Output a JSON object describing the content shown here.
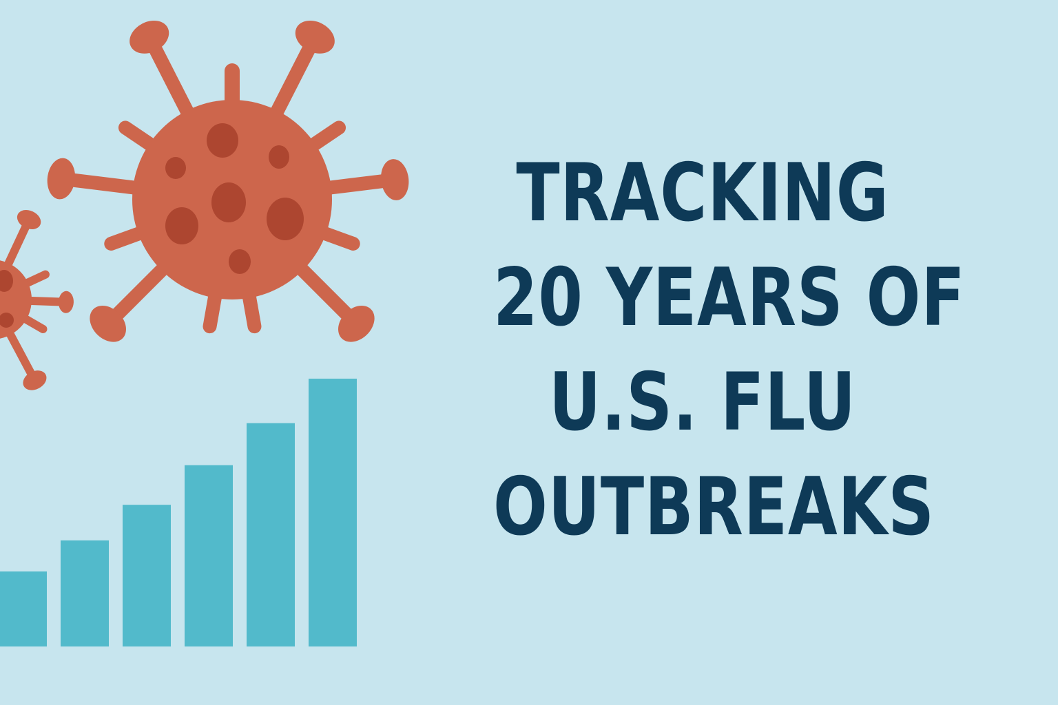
{
  "title_lines": [
    "TRACKING",
    "20 YEARS OF",
    "U.S. FLU",
    "OUTBREAKS"
  ],
  "colors": {
    "background": "#c7e5ee",
    "virus_body": "#cd664c",
    "virus_spots": "#ad4630",
    "bars": "#52bacb",
    "title_text": "#0e3a57"
  },
  "icons": [
    "virus-icon",
    "virus-icon",
    "bar-chart-icon"
  ],
  "bar_chart_relative_heights": [
    0.28,
    0.396,
    0.529,
    0.677,
    0.834,
    1.0
  ]
}
